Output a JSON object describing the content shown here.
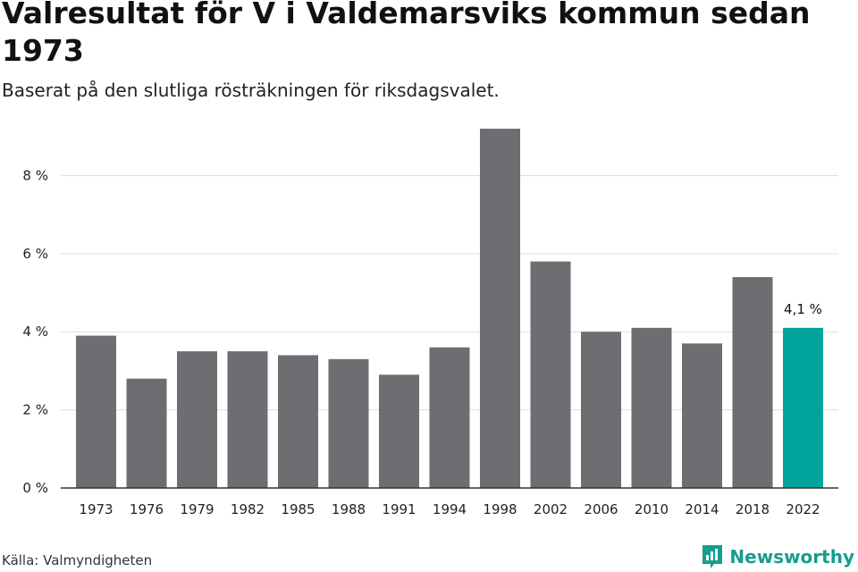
{
  "title": "Valresultat för V i Valdemarsviks kommun sedan 1973",
  "subtitle": "Baserat på den slutliga rösträkningen för riksdagsvalet.",
  "source": "Källa: Valmyndigheten",
  "brand": {
    "name": "Newsworthy",
    "icon": "newsworthy-logo-icon",
    "color": "#159d90"
  },
  "colors": {
    "bar": "#6e6d72",
    "highlight": "#00a49a",
    "grid": "#dddddd",
    "axis": "#333333"
  },
  "chart_data": {
    "type": "bar",
    "title": "Valresultat för V i Valdemarsviks kommun sedan 1973",
    "subtitle": "Baserat på den slutliga rösträkningen för riksdagsvalet.",
    "xlabel": "",
    "ylabel": "",
    "categories": [
      "1973",
      "1976",
      "1979",
      "1982",
      "1985",
      "1988",
      "1991",
      "1994",
      "1998",
      "2002",
      "2006",
      "2010",
      "2014",
      "2018",
      "2022"
    ],
    "values": [
      3.9,
      2.8,
      3.5,
      3.5,
      3.4,
      3.3,
      2.9,
      3.6,
      9.2,
      5.8,
      4.0,
      4.1,
      3.7,
      5.4,
      4.1
    ],
    "ylim": [
      0,
      9.2
    ],
    "yticks": [
      0,
      2,
      4,
      6,
      8
    ],
    "ytick_labels": [
      "0 %",
      "2 %",
      "4 %",
      "6 %",
      "8 %"
    ],
    "highlight_index": 14,
    "annotations": [
      {
        "category": "2022",
        "text": "4,1 %"
      }
    ],
    "grid": true,
    "legend": "none"
  }
}
